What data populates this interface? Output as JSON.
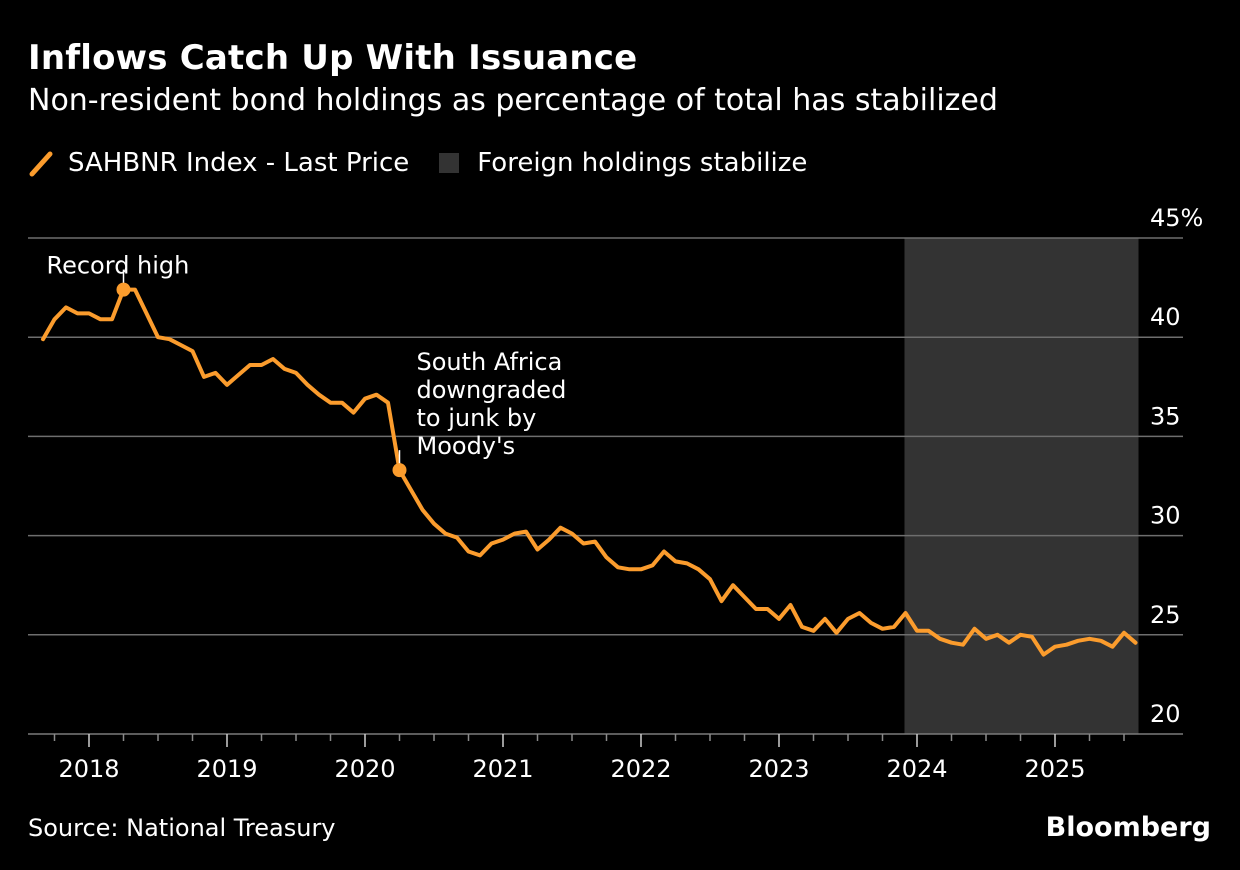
{
  "header": {
    "title": "Inflows Catch Up With Issuance",
    "subtitle": "Non-resident bond holdings as percentage of total has stabilized"
  },
  "legend": [
    {
      "label": "SAHBNR Index - Last Price",
      "type": "line",
      "color": "#FB9C2D"
    },
    {
      "label": "Foreign holdings stabilize",
      "type": "box",
      "color": "#333333"
    }
  ],
  "footer": {
    "source": "Source: National Treasury",
    "brand": "Bloomberg"
  },
  "chart_data": {
    "type": "line",
    "title": "Inflows Catch Up With Issuance",
    "subtitle": "Non-resident bond holdings as percentage of total has stabilized",
    "xlabel": "",
    "ylabel": "",
    "ylim": [
      20,
      45
    ],
    "y_ticks": [
      20,
      25,
      30,
      35,
      40,
      45
    ],
    "y_tick_labels": [
      "20",
      "25",
      "30",
      "35",
      "40",
      "45%"
    ],
    "y_axis_side": "right",
    "grid": true,
    "x_range": [
      "2017-09",
      "2025-08"
    ],
    "x_ticks": [
      "2018",
      "2019",
      "2020",
      "2021",
      "2022",
      "2023",
      "2024",
      "2025"
    ],
    "legend_position": "top-left",
    "series": [
      {
        "name": "SAHBNR Index - Last Price",
        "color": "#FB9C2D",
        "start": "2017-09",
        "frequency": "monthly",
        "values": [
          39.9,
          40.9,
          41.5,
          41.2,
          41.2,
          40.9,
          40.9,
          42.4,
          42.4,
          41.2,
          40.0,
          39.9,
          39.6,
          39.3,
          38.0,
          38.2,
          37.6,
          38.1,
          38.6,
          38.6,
          38.9,
          38.4,
          38.2,
          37.6,
          37.1,
          36.7,
          36.7,
          36.2,
          36.9,
          37.1,
          36.7,
          33.3,
          32.3,
          31.3,
          30.6,
          30.1,
          29.9,
          29.2,
          29.0,
          29.6,
          29.8,
          30.1,
          30.2,
          29.3,
          29.8,
          30.4,
          30.1,
          29.6,
          29.7,
          28.9,
          28.4,
          28.3,
          28.3,
          28.5,
          29.2,
          28.7,
          28.6,
          28.3,
          27.8,
          26.7,
          27.5,
          26.9,
          26.3,
          26.3,
          25.8,
          26.5,
          25.4,
          25.2,
          25.8,
          25.1,
          25.8,
          26.1,
          25.6,
          25.3,
          25.4,
          26.1,
          25.2,
          25.2,
          24.8,
          24.6,
          24.5,
          25.3,
          24.8,
          25.0,
          24.6,
          25.0,
          24.9,
          24.0,
          24.4,
          24.5,
          24.7,
          24.8,
          24.7,
          24.4,
          25.1,
          24.6
        ]
      }
    ],
    "shaded_regions": [
      {
        "label": "Foreign holdings stabilize",
        "start": "2023-12",
        "end": "2025-08",
        "color": "#333333"
      }
    ],
    "annotations": [
      {
        "text": "Record high",
        "date": "2018-04",
        "value": 42.4
      },
      {
        "text": "South Africa downgraded to junk by Moody's",
        "lines": [
          "South Africa",
          "downgraded",
          "to junk by",
          "Moody's"
        ],
        "date": "2020-04",
        "value": 33.3
      }
    ]
  }
}
